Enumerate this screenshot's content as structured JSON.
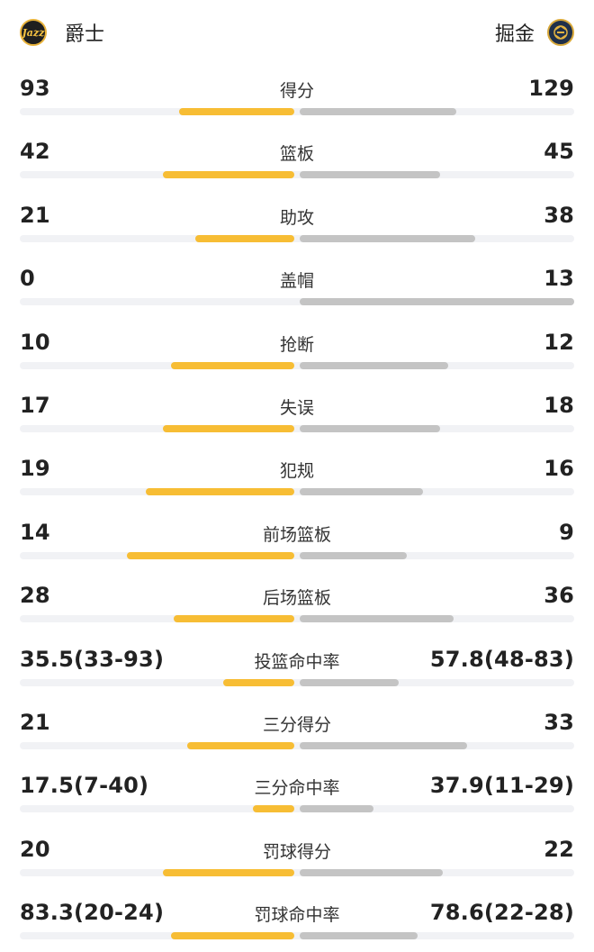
{
  "home": {
    "name": "爵士",
    "logo_icon": "jazz-logo-icon",
    "logo_text": "Jazz"
  },
  "away": {
    "name": "掘金",
    "logo_icon": "nuggets-logo-icon"
  },
  "colors": {
    "home_bar": "#f7bd34",
    "away_bar": "#c4c4c4",
    "track": "#f1f2f5"
  },
  "stats": [
    {
      "label": "得分",
      "left": "93",
      "right": "129",
      "left_pct": 0.42,
      "right_pct": 0.57
    },
    {
      "label": "篮板",
      "left": "42",
      "right": "45",
      "left_pct": 0.48,
      "right_pct": 0.51
    },
    {
      "label": "助攻",
      "left": "21",
      "right": "38",
      "left_pct": 0.36,
      "right_pct": 0.64
    },
    {
      "label": "盖帽",
      "left": "0",
      "right": "13",
      "left_pct": 0.0,
      "right_pct": 1.0
    },
    {
      "label": "抢断",
      "left": "10",
      "right": "12",
      "left_pct": 0.45,
      "right_pct": 0.54
    },
    {
      "label": "失误",
      "left": "17",
      "right": "18",
      "left_pct": 0.48,
      "right_pct": 0.51
    },
    {
      "label": "犯规",
      "left": "19",
      "right": "16",
      "left_pct": 0.54,
      "right_pct": 0.45
    },
    {
      "label": "前场篮板",
      "left": "14",
      "right": "9",
      "left_pct": 0.61,
      "right_pct": 0.39
    },
    {
      "label": "后场篮板",
      "left": "28",
      "right": "36",
      "left_pct": 0.44,
      "right_pct": 0.56
    },
    {
      "label": "投篮命中率",
      "left": "35.5(33-93)",
      "right": "57.8(48-83)",
      "left_pct": 0.26,
      "right_pct": 0.36
    },
    {
      "label": "三分得分",
      "left": "21",
      "right": "33",
      "left_pct": 0.39,
      "right_pct": 0.61
    },
    {
      "label": "三分命中率",
      "left": "17.5(7-40)",
      "right": "37.9(11-29)",
      "left_pct": 0.15,
      "right_pct": 0.27
    },
    {
      "label": "罚球得分",
      "left": "20",
      "right": "22",
      "left_pct": 0.48,
      "right_pct": 0.52
    },
    {
      "label": "罚球命中率",
      "left": "83.3(20-24)",
      "right": "78.6(22-28)",
      "left_pct": 0.45,
      "right_pct": 0.43
    }
  ]
}
